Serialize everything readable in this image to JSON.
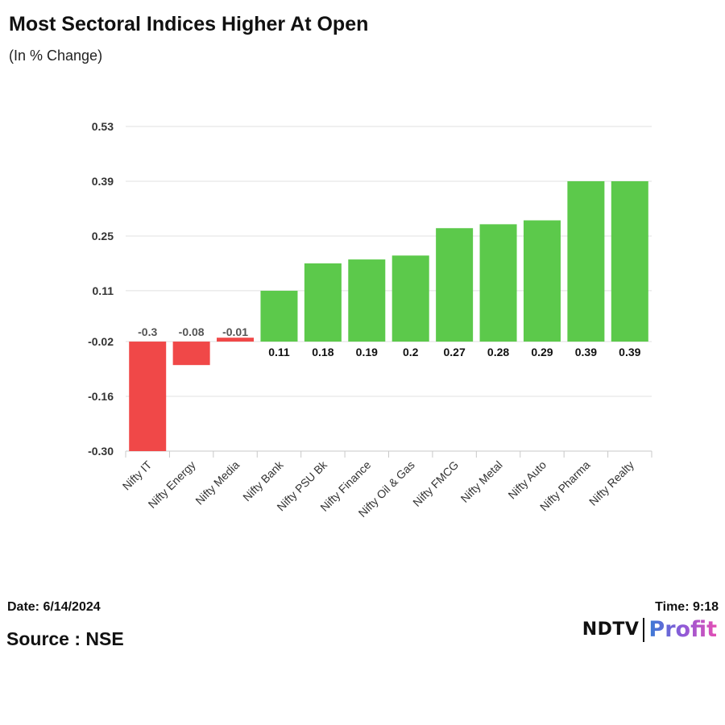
{
  "header": {
    "title": "Most Sectoral Indices Higher At Open",
    "subtitle": "(In % Change)"
  },
  "footer": {
    "date": "Date: 6/14/2024",
    "time": "Time: 9:18",
    "source": "Source : NSE",
    "logo_ndtv": "NDTV",
    "logo_profit": "Profit"
  },
  "colors": {
    "positive": "#5cc94b",
    "negative": "#f04848",
    "grid": "#e0e0e0"
  },
  "chart_data": {
    "type": "bar",
    "title": "Most Sectoral Indices Higher At Open",
    "subtitle": "(In % Change)",
    "xlabel": "",
    "ylabel": "",
    "categories": [
      "Nifty IT",
      "Nifty Energy",
      "Nifty Media",
      "Nifty Bank",
      "Nifty PSU Bk",
      "Nifty Finance",
      "Nifty Oil & Gas",
      "Nifty FMCG",
      "Nifty Metal",
      "Nifty Auto",
      "Nifty Pharma",
      "Nifty Realty"
    ],
    "values": [
      -0.3,
      -0.08,
      -0.01,
      0.11,
      0.18,
      0.19,
      0.2,
      0.27,
      0.28,
      0.29,
      0.39,
      0.39
    ],
    "value_labels": [
      "-0.3",
      "-0.08",
      "-0.01",
      "0.11",
      "0.18",
      "0.19",
      "0.2",
      "0.27",
      "0.28",
      "0.29",
      "0.39",
      "0.39"
    ],
    "y_ticks": [
      0.53,
      0.39,
      0.25,
      0.11,
      -0.02,
      -0.16,
      -0.3
    ],
    "y_tick_labels": [
      "0.53",
      "0.39",
      "0.25",
      "0.11",
      "-0.02",
      "-0.16",
      "-0.30"
    ],
    "ylim": [
      -0.3,
      0.53
    ],
    "grid": true,
    "legend": "none"
  }
}
